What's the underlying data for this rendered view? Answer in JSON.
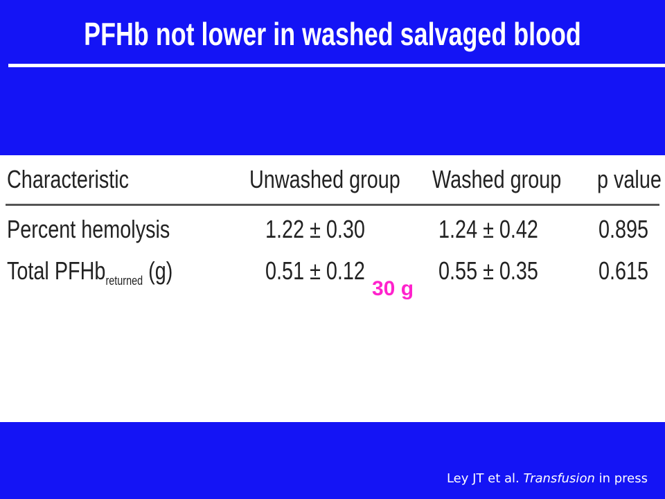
{
  "header": {
    "title": "PFHb not lower in washed salvaged blood"
  },
  "table": {
    "columns": [
      "Characteristic",
      "Unwashed group",
      "Washed group",
      "p value"
    ],
    "rows": [
      [
        {
          "text": "Percent hemolysis"
        },
        "1.22 ± 0.30",
        "1.24 ± 0.42",
        "0.895"
      ],
      [
        {
          "text": "Total PFHb",
          "subscript": "returned",
          "suffix": "(g)"
        },
        "0.51 ± 0.12",
        "0.55 ± 0.35",
        "0.615"
      ]
    ]
  },
  "annotation": "30 g",
  "footer": {
    "authors": "Ley JT et al.",
    "journal": "Transfusion",
    "status": "in press"
  }
}
